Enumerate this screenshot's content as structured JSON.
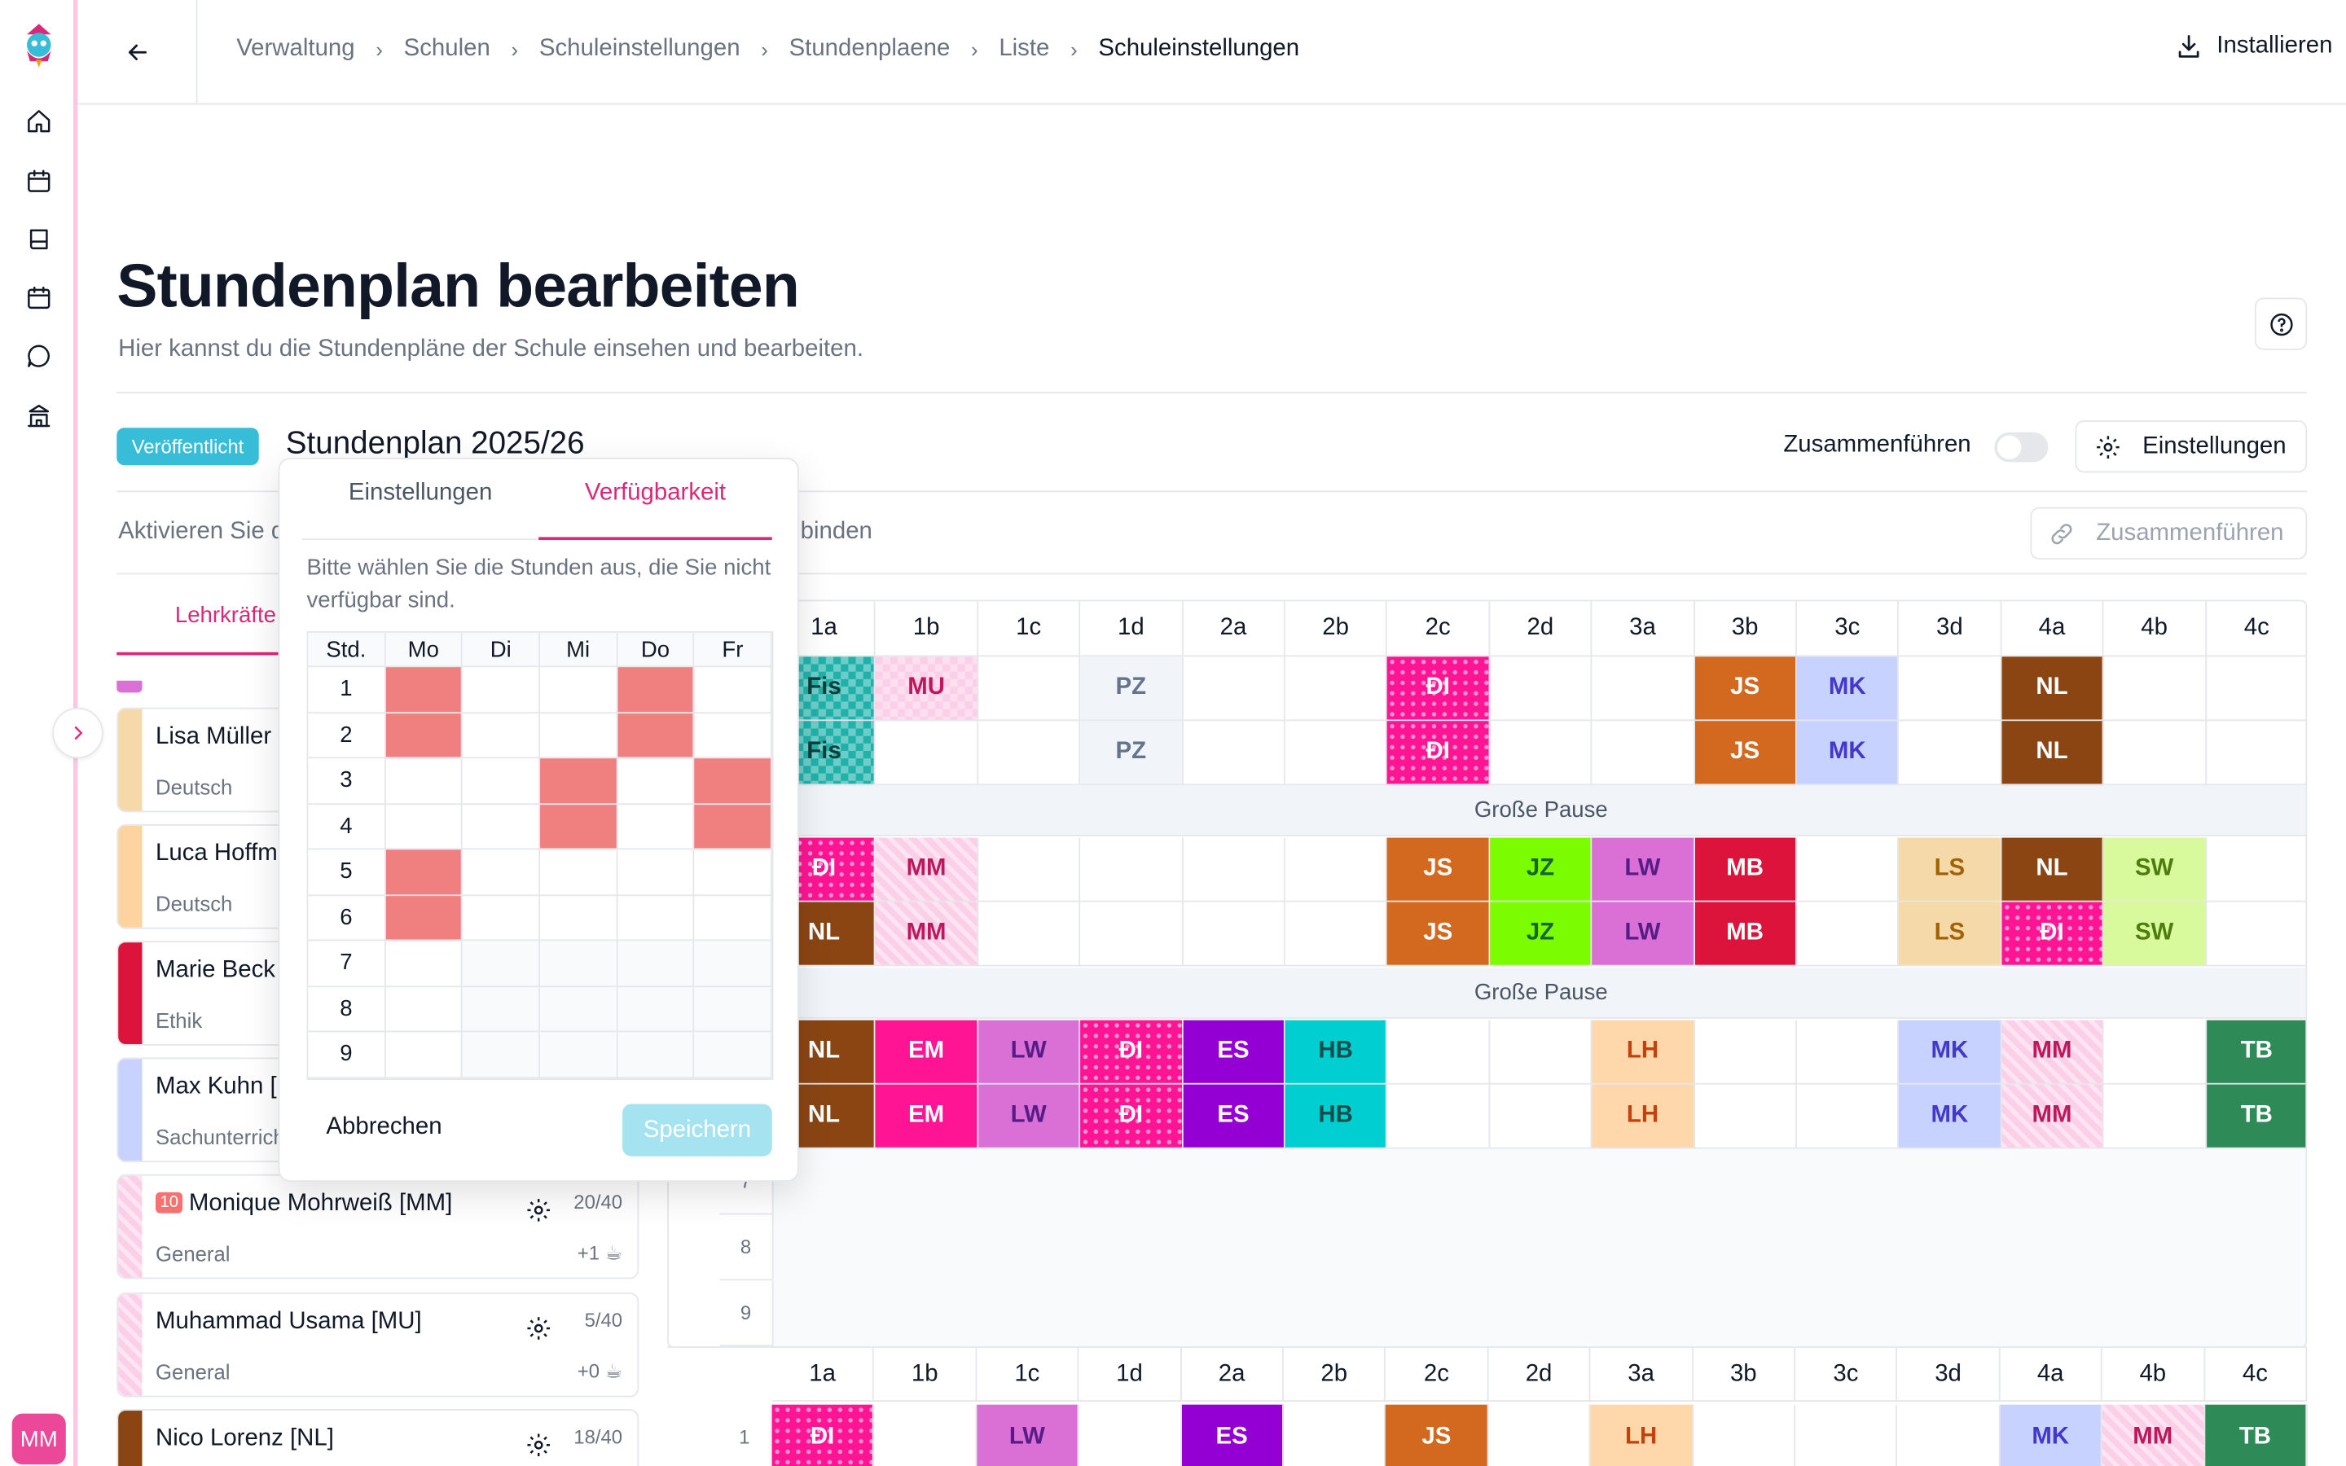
{
  "header": {
    "breadcrumb": [
      "Verwaltung",
      "Schulen",
      "Schuleinstellungen",
      "Stundenplaene",
      "Liste",
      "Schuleinstellungen"
    ],
    "install_label": "Installieren"
  },
  "user": {
    "initials": "MM"
  },
  "page": {
    "title": "Stundenplan bearbeiten",
    "subtitle": "Hier kannst du die Stundenpläne der Schule einsehen und bearbeiten."
  },
  "plan": {
    "status": "Veröffentlicht",
    "name": "Stundenplan 2025/26",
    "merge_label": "Zusammenführen",
    "merge_enabled": false,
    "settings_label": "Einstellungen",
    "hint_left": "Aktivieren Sie d",
    "hint_right": "binden",
    "merge_button_label": "Zusammenführen"
  },
  "left_panel": {
    "tab_label": "Lehrkräfte",
    "teachers": [
      {
        "name": "Lisa Müller",
        "subject": "Deutsch",
        "color": "#f5d9a8"
      },
      {
        "name": "Luca Hoffm",
        "subject": "Deutsch",
        "color": "#fdd39f"
      },
      {
        "name": "Marie Beck",
        "subject": "Ethik",
        "color": "#dc143c"
      },
      {
        "name": "Max Kuhn [",
        "subject": "Sachunterrich",
        "color": "#c7d2fe"
      },
      {
        "badge": "10",
        "name": "Monique Mohrweiß [MM]",
        "subject": "General",
        "hours": "20/40",
        "extra": "+1",
        "color": "#fbcfe8"
      },
      {
        "name": "Muhammad Usama [MU]",
        "subject": "General",
        "hours": "5/40",
        "extra": "+0",
        "color": "#fbcfe8"
      },
      {
        "name": "Nico Lorenz [NL]",
        "subject": "",
        "hours": "18/40",
        "color": "#8b4513"
      }
    ]
  },
  "timetable": {
    "classes": [
      "1a",
      "1b",
      "1c",
      "1d",
      "2a",
      "2b",
      "2c",
      "2d",
      "3a",
      "3b",
      "3c",
      "3d",
      "4a",
      "4b",
      "4c"
    ],
    "break_label": "Große Pause",
    "row_numbers": [
      "7",
      "8",
      "9"
    ],
    "second_row_number": "1",
    "lessons": [
      [
        "Fis",
        "MU",
        "",
        "PZ",
        "",
        "",
        "ĐI",
        "",
        "",
        "JS",
        "MK",
        "",
        "NL",
        "",
        ""
      ],
      [
        "Fis",
        "",
        "",
        "PZ",
        "",
        "",
        "ĐI",
        "",
        "",
        "JS",
        "MK",
        "",
        "NL",
        "",
        ""
      ],
      [
        "ĐI",
        "MM",
        "",
        "",
        "",
        "",
        "JS",
        "JZ",
        "LW",
        "MB",
        "",
        "LS",
        "NL",
        "SW",
        ""
      ],
      [
        "NL",
        "MM",
        "",
        "",
        "",
        "",
        "JS",
        "JZ",
        "LW",
        "MB",
        "",
        "LS",
        "ĐI",
        "SW",
        ""
      ],
      [
        "NL",
        "EM",
        "LW",
        "ĐI",
        "ES",
        "HB",
        "",
        "",
        "LH",
        "",
        "",
        "MK",
        "MM",
        "",
        "TB"
      ],
      [
        "NL",
        "EM",
        "LW",
        "ĐI",
        "ES",
        "HB",
        "",
        "",
        "LH",
        "",
        "",
        "MK",
        "MM",
        "",
        "TB"
      ]
    ],
    "second_week_row": [
      "ĐI",
      "",
      "LW",
      "",
      "ES",
      "",
      "JS",
      "",
      "LH",
      "",
      "",
      "",
      "MK",
      "MM",
      "TB"
    ]
  },
  "popover": {
    "tabs": [
      "Einstellungen",
      "Verfügbarkeit"
    ],
    "active_tab": "Verfügbarkeit",
    "description": "Bitte wählen Sie die Stunden aus, die Sie nicht verfügbar sind.",
    "grid_header": [
      "Std.",
      "Mo",
      "Di",
      "Mi",
      "Do",
      "Fr"
    ],
    "periods": [
      "1",
      "2",
      "3",
      "4",
      "5",
      "6",
      "7",
      "8",
      "9"
    ],
    "unavailable": {
      "Mo": [
        1,
        2,
        5,
        6
      ],
      "Mi": [
        3,
        4
      ],
      "Do": [
        1,
        2
      ],
      "Fr": [
        3,
        4
      ]
    },
    "cancel_label": "Abbrechen",
    "save_label": "Speichern"
  },
  "colors": {
    "accent": "#db2777",
    "status_badge": "#38bdd8",
    "unavailable": "#f08080"
  }
}
